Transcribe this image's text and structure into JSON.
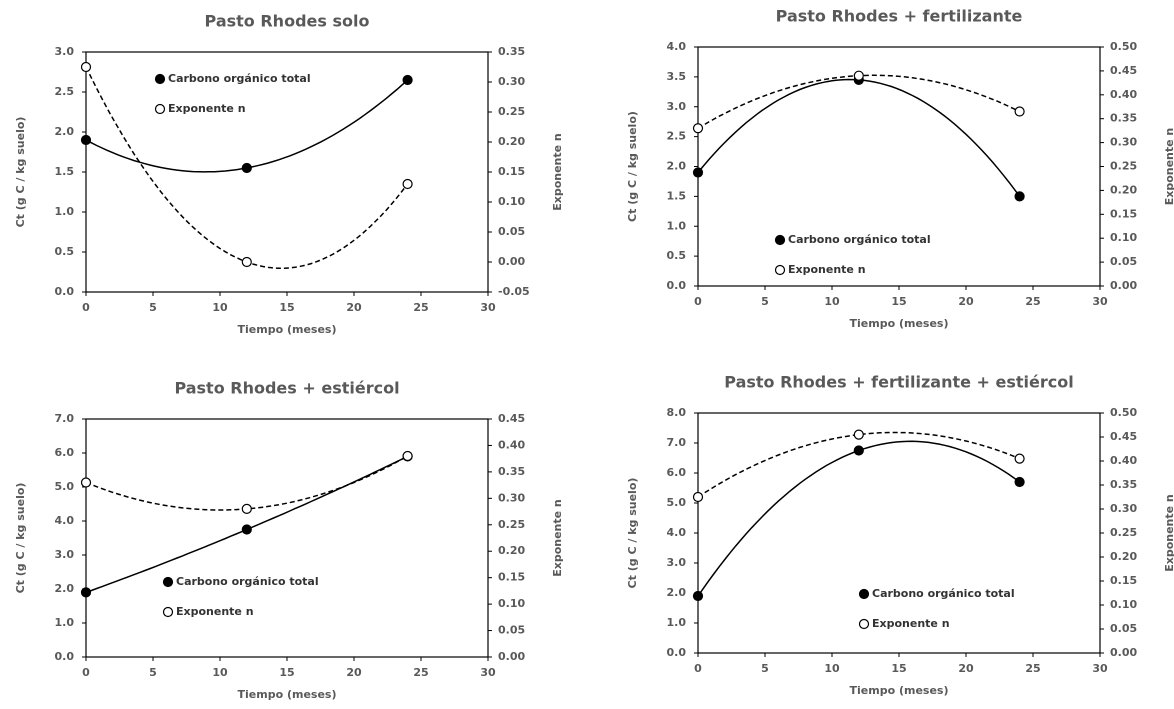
{
  "chart_data": [
    {
      "type": "line",
      "title": "Pasto Rhodes solo",
      "x_label": "Tiempo (meses)",
      "y_label": "Ct (g C / kg suelo)",
      "y2_label": "Exponente n",
      "x": [
        0,
        12,
        24
      ],
      "xlim": [
        0,
        30
      ],
      "xticks": [
        0,
        5,
        10,
        15,
        20,
        25,
        30
      ],
      "ylim": [
        0,
        3
      ],
      "yticks": [
        {
          "value": 0,
          "label": "0.0"
        },
        0.5,
        {
          "value": 1,
          "label": "1.0"
        },
        1.5,
        {
          "value": 2,
          "label": "2.0"
        },
        2.5,
        {
          "value": 3,
          "label": "3.0"
        }
      ],
      "y2lim": [
        -0.05,
        0.35
      ],
      "y2ticks": [
        -0.05,
        {
          "value": 0,
          "label": "0.00"
        },
        0.05,
        {
          "value": 0.1,
          "label": "0.10"
        },
        0.15,
        {
          "value": 0.2,
          "label": "0.20"
        },
        0.25,
        {
          "value": 0.3,
          "label": "0.30"
        },
        0.35
      ],
      "series": [
        {
          "name": "Carbono orgánico total",
          "color": "#000000",
          "marker": "filled",
          "line_style": "solid",
          "values": [
            1.9,
            1.55,
            2.65
          ]
        },
        {
          "name": "Exponente n",
          "color": "#000000",
          "marker": "open",
          "line_style": "dashed",
          "axis": "y2",
          "values": [
            0.325,
            0.0,
            0.13
          ]
        }
      ]
    },
    {
      "type": "line",
      "title": "Pasto Rhodes + fertilizante",
      "x_label": "Tiempo (meses)",
      "y_label": "Ct (g C / kg suelo)",
      "y2_label": "Exponente n",
      "x": [
        0,
        12,
        24
      ],
      "xlim": [
        0,
        30
      ],
      "xticks": [
        0,
        5,
        10,
        15,
        20,
        25,
        30
      ],
      "ylim": [
        0,
        4
      ],
      "yticks": [
        {
          "value": 0,
          "label": "0.0"
        },
        0.5,
        {
          "value": 1,
          "label": "1.0"
        },
        1.5,
        {
          "value": 2,
          "label": "2.0"
        },
        2.5,
        {
          "value": 3,
          "label": "3.0"
        },
        3.5,
        {
          "value": 4,
          "label": "4.0"
        }
      ],
      "y2lim": [
        0,
        0.5
      ],
      "y2ticks": [
        {
          "value": 0,
          "label": "0.00"
        },
        0.05,
        {
          "value": 0.1,
          "label": "0.10"
        },
        0.15,
        {
          "value": 0.2,
          "label": "0.20"
        },
        0.25,
        {
          "value": 0.3,
          "label": "0.30"
        },
        0.35,
        {
          "value": 0.4,
          "label": "0.40"
        },
        0.45,
        {
          "value": 0.5,
          "label": "0.50"
        }
      ],
      "series": [
        {
          "name": "Carbono orgánico total",
          "color": "#000000",
          "marker": "filled",
          "line_style": "solid",
          "values": [
            1.9,
            3.45,
            1.5
          ]
        },
        {
          "name": "Exponente n",
          "color": "#000000",
          "marker": "open",
          "line_style": "dashed",
          "axis": "y2",
          "values": [
            0.33,
            0.44,
            0.365
          ]
        }
      ]
    },
    {
      "type": "line",
      "title": "Pasto Rhodes + estiércol",
      "x_label": "Tiempo (meses)",
      "y_label": "Ct (g C / kg suelo)",
      "y2_label": "Exponente n",
      "x": [
        0,
        12,
        24
      ],
      "xlim": [
        0,
        30
      ],
      "xticks": [
        0,
        5,
        10,
        15,
        20,
        25,
        30
      ],
      "ylim": [
        0,
        7
      ],
      "yticks": [
        {
          "value": 0,
          "label": "0.0"
        },
        {
          "value": 1,
          "label": "1.0"
        },
        {
          "value": 2,
          "label": "2.0"
        },
        {
          "value": 3,
          "label": "3.0"
        },
        {
          "value": 4,
          "label": "4.0"
        },
        {
          "value": 5,
          "label": "5.0"
        },
        {
          "value": 6,
          "label": "6.0"
        },
        {
          "value": 7,
          "label": "7.0"
        }
      ],
      "y2lim": [
        0,
        0.45
      ],
      "y2ticks": [
        {
          "value": 0,
          "label": "0.00"
        },
        0.05,
        {
          "value": 0.1,
          "label": "0.10"
        },
        0.15,
        {
          "value": 0.2,
          "label": "0.20"
        },
        0.25,
        {
          "value": 0.3,
          "label": "0.30"
        },
        0.35,
        {
          "value": 0.4,
          "label": "0.40"
        },
        0.45
      ],
      "series": [
        {
          "name": "Carbono orgánico total",
          "color": "#000000",
          "marker": "filled",
          "line_style": "solid",
          "values": [
            1.9,
            3.75,
            5.9
          ]
        },
        {
          "name": "Exponente n",
          "color": "#000000",
          "marker": "open",
          "line_style": "dashed",
          "axis": "y2",
          "values": [
            0.33,
            0.28,
            0.38
          ]
        }
      ]
    },
    {
      "type": "line",
      "title": "Pasto Rhodes + fertilizante + estiércol",
      "x_label": "Tiempo (meses)",
      "y_label": "Ct (g C / kg suelo)",
      "y2_label": "Exponente n",
      "x": [
        0,
        12,
        24
      ],
      "xlim": [
        0,
        30
      ],
      "xticks": [
        0,
        5,
        10,
        15,
        20,
        25,
        30
      ],
      "ylim": [
        0,
        8
      ],
      "yticks": [
        {
          "value": 0,
          "label": "0.0"
        },
        {
          "value": 1,
          "label": "1.0"
        },
        {
          "value": 2,
          "label": "2.0"
        },
        {
          "value": 3,
          "label": "3.0"
        },
        {
          "value": 4,
          "label": "4.0"
        },
        {
          "value": 5,
          "label": "5.0"
        },
        {
          "value": 6,
          "label": "6.0"
        },
        {
          "value": 7,
          "label": "7.0"
        },
        {
          "value": 8,
          "label": "8.0"
        }
      ],
      "y2lim": [
        0,
        0.5
      ],
      "y2ticks": [
        {
          "value": 0,
          "label": "0.00"
        },
        0.05,
        {
          "value": 0.1,
          "label": "0.10"
        },
        0.15,
        {
          "value": 0.2,
          "label": "0.20"
        },
        0.25,
        {
          "value": 0.3,
          "label": "0.30"
        },
        0.35,
        {
          "value": 0.4,
          "label": "0.40"
        },
        0.45,
        {
          "value": 0.5,
          "label": "0.50"
        }
      ],
      "series": [
        {
          "name": "Carbono orgánico total",
          "color": "#000000",
          "marker": "filled",
          "line_style": "solid",
          "values": [
            1.9,
            6.75,
            5.7
          ]
        },
        {
          "name": "Exponente n",
          "color": "#000000",
          "marker": "open",
          "line_style": "dashed",
          "axis": "y2",
          "values": [
            0.325,
            0.455,
            0.405
          ]
        }
      ]
    }
  ]
}
